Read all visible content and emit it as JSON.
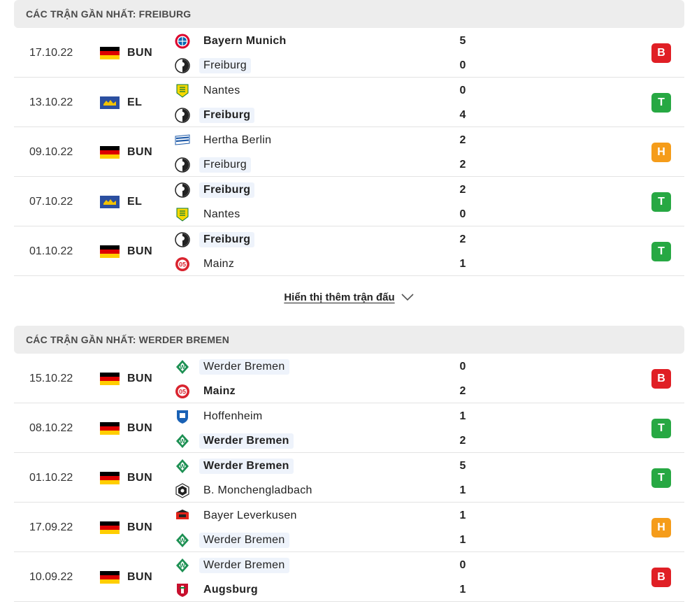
{
  "colors": {
    "loss": "#e01f25",
    "win": "#27a843",
    "draw": "#f59c1a"
  },
  "sections": [
    {
      "title": "CÁC TRẬN GẦN NHẤT: FREIBURG",
      "matches": [
        {
          "date": "17.10.22",
          "comp": "BUN",
          "flag": "germany-flag",
          "home": {
            "name": "Bayern Munich",
            "logo": "bayern-logo",
            "bold": true,
            "highlight": false
          },
          "home_score": "5",
          "away": {
            "name": "Freiburg",
            "logo": "freiburg-logo",
            "bold": false,
            "highlight": true
          },
          "away_score": "0",
          "result": "B",
          "result_type": "loss"
        },
        {
          "date": "13.10.22",
          "comp": "EL",
          "flag": "europe-flag",
          "home": {
            "name": "Nantes",
            "logo": "nantes-logo",
            "bold": false,
            "highlight": false
          },
          "home_score": "0",
          "away": {
            "name": "Freiburg",
            "logo": "freiburg-logo",
            "bold": true,
            "highlight": true
          },
          "away_score": "4",
          "result": "T",
          "result_type": "win"
        },
        {
          "date": "09.10.22",
          "comp": "BUN",
          "flag": "germany-flag",
          "home": {
            "name": "Hertha Berlin",
            "logo": "hertha-logo",
            "bold": false,
            "highlight": false
          },
          "home_score": "2",
          "away": {
            "name": "Freiburg",
            "logo": "freiburg-logo",
            "bold": false,
            "highlight": true
          },
          "away_score": "2",
          "result": "H",
          "result_type": "draw"
        },
        {
          "date": "07.10.22",
          "comp": "EL",
          "flag": "europe-flag",
          "home": {
            "name": "Freiburg",
            "logo": "freiburg-logo",
            "bold": true,
            "highlight": true
          },
          "home_score": "2",
          "away": {
            "name": "Nantes",
            "logo": "nantes-logo",
            "bold": false,
            "highlight": false
          },
          "away_score": "0",
          "result": "T",
          "result_type": "win"
        },
        {
          "date": "01.10.22",
          "comp": "BUN",
          "flag": "germany-flag",
          "home": {
            "name": "Freiburg",
            "logo": "freiburg-logo",
            "bold": true,
            "highlight": true
          },
          "home_score": "2",
          "away": {
            "name": "Mainz",
            "logo": "mainz-logo",
            "bold": false,
            "highlight": false
          },
          "away_score": "1",
          "result": "T",
          "result_type": "win"
        }
      ],
      "more_label": "Hiển thị thêm trận đấu"
    },
    {
      "title": "CÁC TRẬN GẦN NHẤT: WERDER BREMEN",
      "matches": [
        {
          "date": "15.10.22",
          "comp": "BUN",
          "flag": "germany-flag",
          "home": {
            "name": "Werder Bremen",
            "logo": "werder-logo",
            "bold": false,
            "highlight": true
          },
          "home_score": "0",
          "away": {
            "name": "Mainz",
            "logo": "mainz-logo",
            "bold": true,
            "highlight": false
          },
          "away_score": "2",
          "result": "B",
          "result_type": "loss"
        },
        {
          "date": "08.10.22",
          "comp": "BUN",
          "flag": "germany-flag",
          "home": {
            "name": "Hoffenheim",
            "logo": "hoffenheim-logo",
            "bold": false,
            "highlight": false
          },
          "home_score": "1",
          "away": {
            "name": "Werder Bremen",
            "logo": "werder-logo",
            "bold": true,
            "highlight": true
          },
          "away_score": "2",
          "result": "T",
          "result_type": "win"
        },
        {
          "date": "01.10.22",
          "comp": "BUN",
          "flag": "germany-flag",
          "home": {
            "name": "Werder Bremen",
            "logo": "werder-logo",
            "bold": true,
            "highlight": true
          },
          "home_score": "5",
          "away": {
            "name": "B. Monchengladbach",
            "logo": "gladbach-logo",
            "bold": false,
            "highlight": false
          },
          "away_score": "1",
          "result": "T",
          "result_type": "win"
        },
        {
          "date": "17.09.22",
          "comp": "BUN",
          "flag": "germany-flag",
          "home": {
            "name": "Bayer Leverkusen",
            "logo": "leverkusen-logo",
            "bold": false,
            "highlight": false
          },
          "home_score": "1",
          "away": {
            "name": "Werder Bremen",
            "logo": "werder-logo",
            "bold": false,
            "highlight": true
          },
          "away_score": "1",
          "result": "H",
          "result_type": "draw"
        },
        {
          "date": "10.09.22",
          "comp": "BUN",
          "flag": "germany-flag",
          "home": {
            "name": "Werder Bremen",
            "logo": "werder-logo",
            "bold": false,
            "highlight": true
          },
          "home_score": "0",
          "away": {
            "name": "Augsburg",
            "logo": "augsburg-logo",
            "bold": true,
            "highlight": false
          },
          "away_score": "1",
          "result": "B",
          "result_type": "loss"
        }
      ]
    }
  ]
}
